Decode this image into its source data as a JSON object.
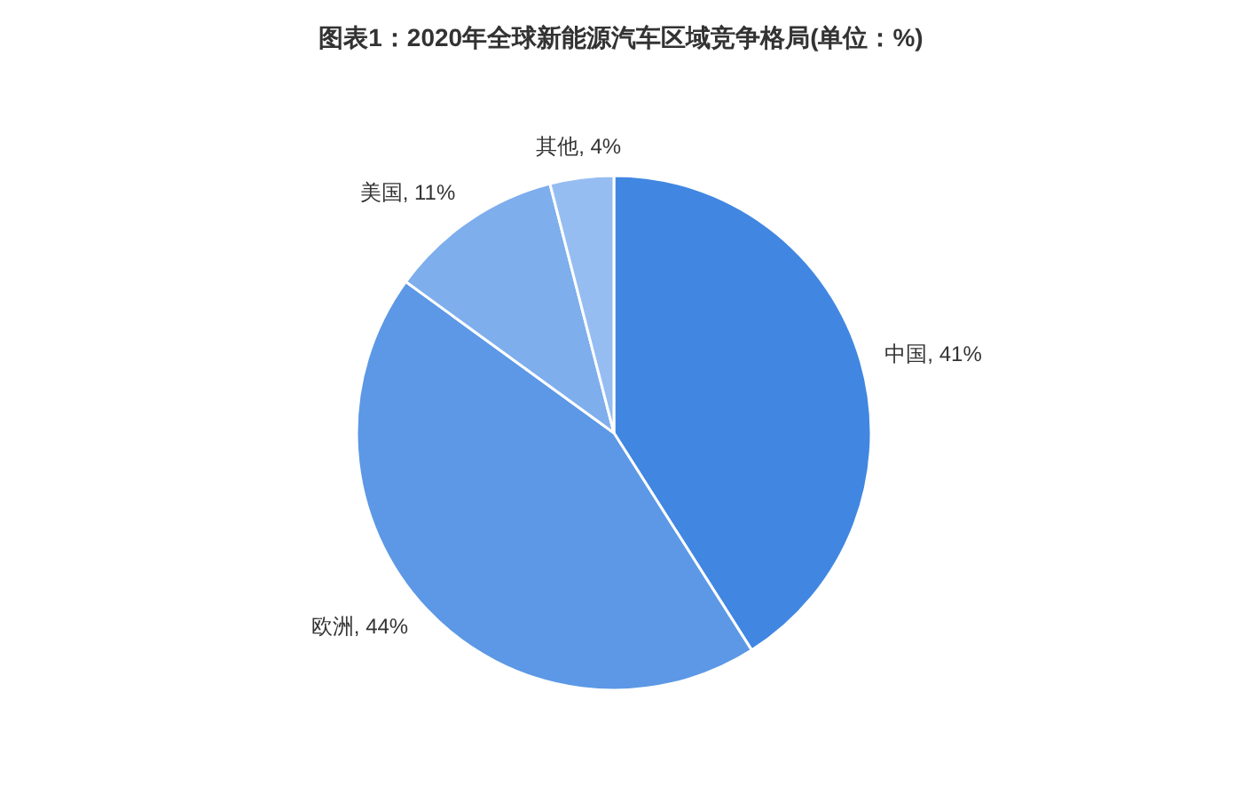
{
  "chart_data": {
    "type": "pie",
    "title": "图表1：2020年全球新能源汽车区域竞争格局(单位：%)",
    "categories": [
      "中国",
      "欧洲",
      "美国",
      "其他"
    ],
    "values": [
      41,
      44,
      11,
      4
    ],
    "value_labels": [
      "41%",
      "44%",
      "11%",
      "4%"
    ],
    "colors": [
      "#4187e2",
      "#5c98e5",
      "#7eaeec",
      "#95bdf1"
    ]
  }
}
